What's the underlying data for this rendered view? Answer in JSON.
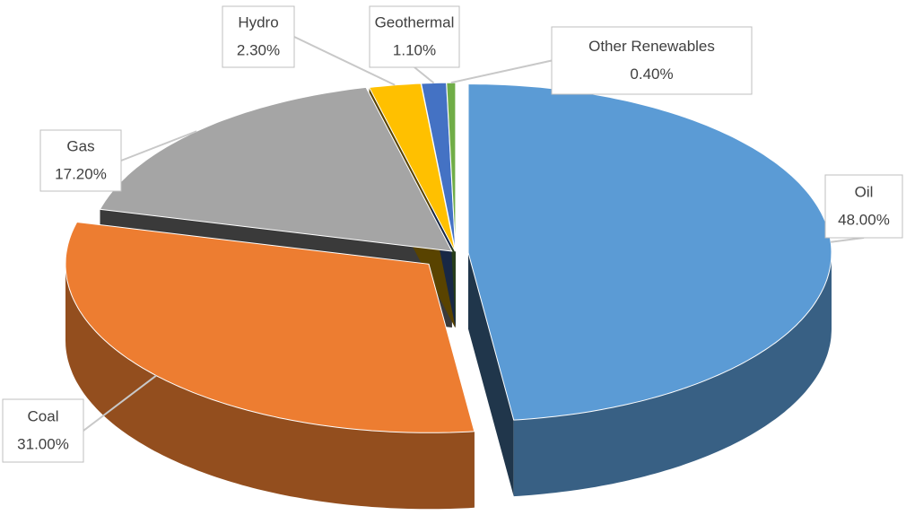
{
  "chart_data": {
    "type": "pie",
    "categories": [
      "Oil",
      "Coal",
      "Gas",
      "Hydro",
      "Geothermal",
      "Other Renewables"
    ],
    "values": [
      48,
      31,
      17.2,
      2.3,
      1.1,
      0.4
    ],
    "value_labels": [
      "48.00%",
      "31.00%",
      "17.20%",
      "2.30%",
      "1.10%",
      "0.40%"
    ],
    "colors": [
      "#5b9bd5",
      "#ed7d31",
      "#a5a5a5",
      "#ffc000",
      "#4472c4",
      "#70ad47"
    ]
  }
}
